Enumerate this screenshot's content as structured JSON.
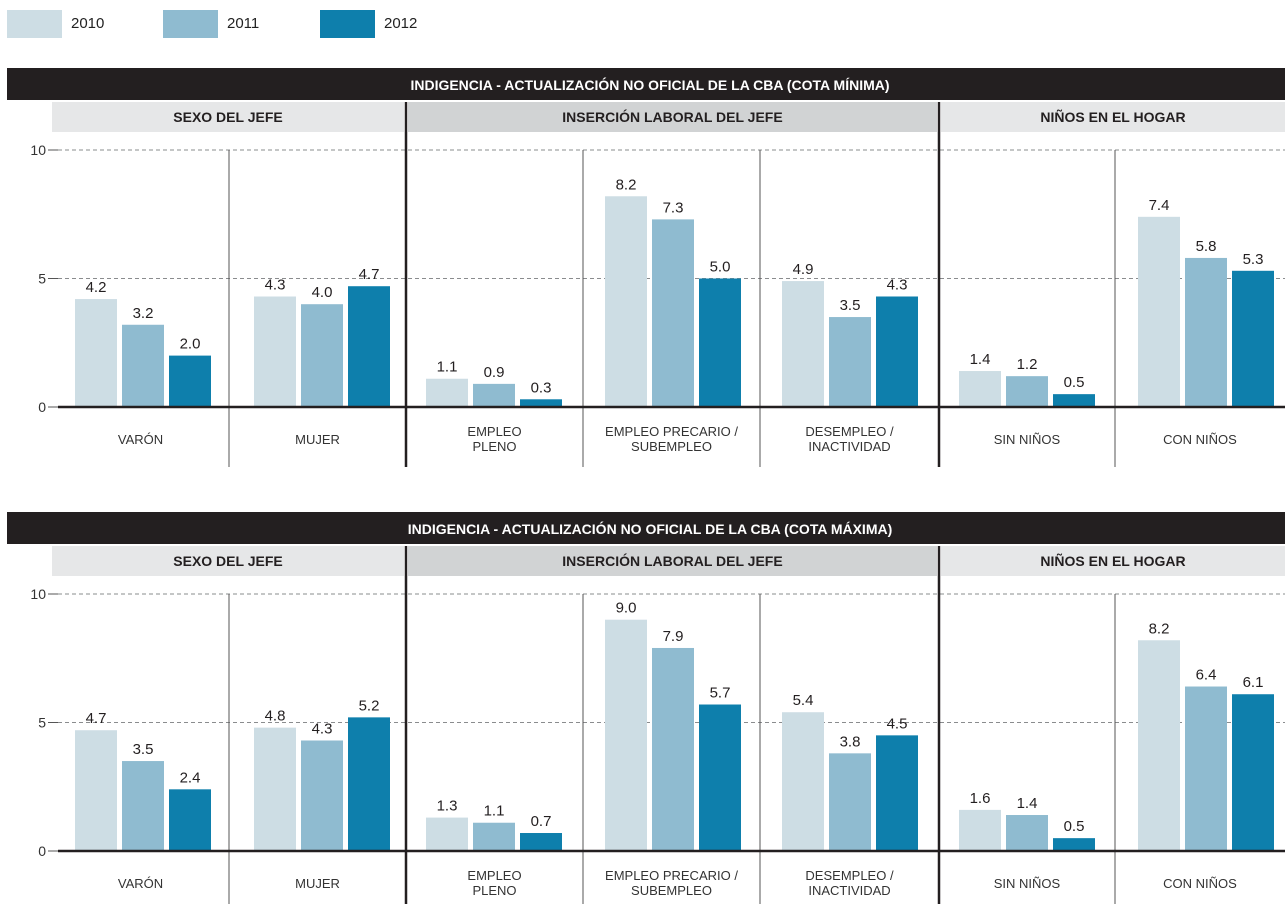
{
  "legend": [
    {
      "label": "2010",
      "color": "#cddde4"
    },
    {
      "label": "2011",
      "color": "#8fbbd0"
    },
    {
      "label": "2012",
      "color": "#0e7fac"
    }
  ],
  "chart_data": [
    {
      "type": "bar",
      "title": "INDIGENCIA -  ACTUALIZACIÓN NO OFICIAL DE LA CBA (COTA MÍNIMA)",
      "ylim": [
        0,
        10
      ],
      "yticks": [
        0,
        5,
        10
      ],
      "grid": true,
      "legend_placement": "top-left",
      "groups": [
        {
          "label": "SEXO DEL JEFE",
          "categories": [
            "VARÓN",
            "MUJER"
          ]
        },
        {
          "label": "INSERCIÓN LABORAL DEL JEFE",
          "categories": [
            "EMPLEO|PLENO",
            "EMPLEO PRECARIO /|SUBEMPLEO",
            "DESEMPLEO /|INACTIVIDAD"
          ]
        },
        {
          "label": "NIÑOS EN EL HOGAR",
          "categories": [
            "SIN NIÑOS",
            "CON NIÑOS"
          ]
        }
      ],
      "categories": [
        "VARÓN",
        "MUJER",
        "EMPLEO|PLENO",
        "EMPLEO PRECARIO /|SUBEMPLEO",
        "DESEMPLEO /|INACTIVIDAD",
        "SIN NIÑOS",
        "CON NIÑOS"
      ],
      "series": [
        {
          "name": "2010",
          "values": [
            4.2,
            4.3,
            1.1,
            8.2,
            4.9,
            1.4,
            7.4
          ]
        },
        {
          "name": "2011",
          "values": [
            3.2,
            4.0,
            0.9,
            7.3,
            3.5,
            1.2,
            5.8
          ]
        },
        {
          "name": "2012",
          "values": [
            2.0,
            4.7,
            0.3,
            5.0,
            4.3,
            0.5,
            5.3
          ]
        }
      ]
    },
    {
      "type": "bar",
      "title": "INDIGENCIA - ACTUALIZACIÓN NO OFICIAL DE LA CBA (COTA MÁXIMA)",
      "ylim": [
        0,
        10
      ],
      "yticks": [
        0,
        5,
        10
      ],
      "grid": true,
      "legend_placement": "top-left",
      "groups": [
        {
          "label": "SEXO DEL JEFE",
          "categories": [
            "VARÓN",
            "MUJER"
          ]
        },
        {
          "label": "INSERCIÓN LABORAL DEL JEFE",
          "categories": [
            "EMPLEO|PLENO",
            "EMPLEO PRECARIO /|SUBEMPLEO",
            "DESEMPLEO /|INACTIVIDAD"
          ]
        },
        {
          "label": "NIÑOS EN EL HOGAR",
          "categories": [
            "SIN NIÑOS",
            "CON NIÑOS"
          ]
        }
      ],
      "categories": [
        "VARÓN",
        "MUJER",
        "EMPLEO|PLENO",
        "EMPLEO PRECARIO /|SUBEMPLEO",
        "DESEMPLEO /|INACTIVIDAD",
        "SIN NIÑOS",
        "CON NIÑOS"
      ],
      "series": [
        {
          "name": "2010",
          "values": [
            4.7,
            4.8,
            1.3,
            9.0,
            5.4,
            1.6,
            8.2
          ]
        },
        {
          "name": "2011",
          "values": [
            3.5,
            4.3,
            1.1,
            7.9,
            3.8,
            1.4,
            6.4
          ]
        },
        {
          "name": "2012",
          "values": [
            2.4,
            5.2,
            0.7,
            5.7,
            4.5,
            0.5,
            6.1
          ]
        }
      ]
    }
  ]
}
